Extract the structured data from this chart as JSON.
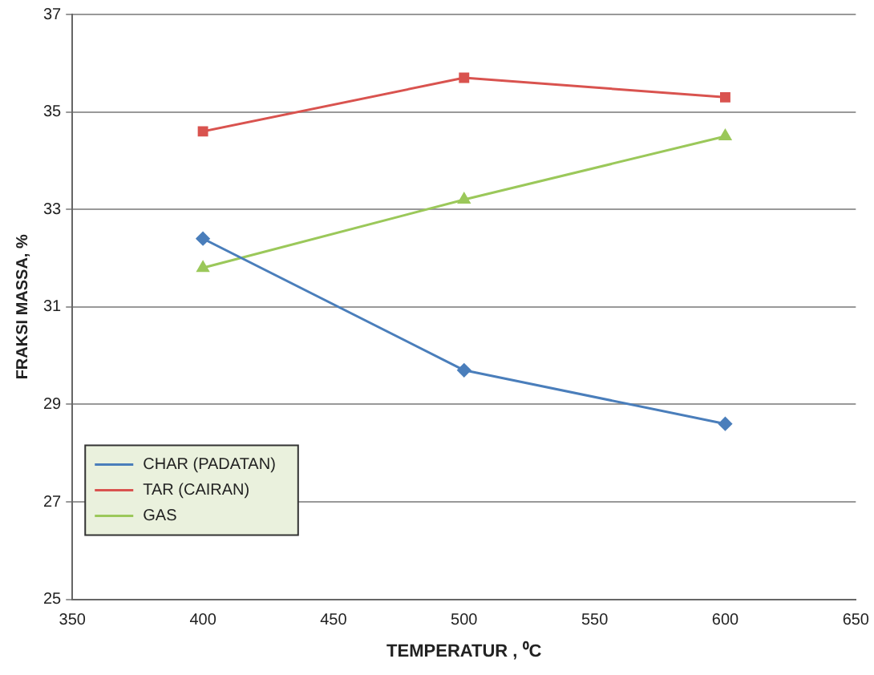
{
  "chart_data": {
    "type": "line",
    "xlabel": "TEMPERATUR , ⁰C",
    "ylabel": "FRAKSI MASSA, %",
    "x": [
      400,
      500,
      600
    ],
    "series": [
      {
        "name": "CHAR (PADATAN)",
        "color": "#4a7ebb",
        "values": [
          32.4,
          29.7,
          28.6
        ],
        "marker": "diamond"
      },
      {
        "name": "TAR (CAIRAN)",
        "color": "#d9534f",
        "values": [
          34.6,
          35.7,
          35.3
        ],
        "marker": "square"
      },
      {
        "name": "GAS",
        "color": "#9bc85a",
        "values": [
          31.8,
          33.2,
          34.5
        ],
        "marker": "triangle"
      }
    ],
    "xlim": [
      350,
      650
    ],
    "xticks": [
      350,
      400,
      450,
      500,
      550,
      600,
      650
    ],
    "ylim": [
      25,
      37
    ],
    "yticks": [
      25,
      27,
      29,
      31,
      33,
      35,
      37
    ],
    "grid": "y",
    "legend": "bottom left",
    "line_style": "solid"
  }
}
